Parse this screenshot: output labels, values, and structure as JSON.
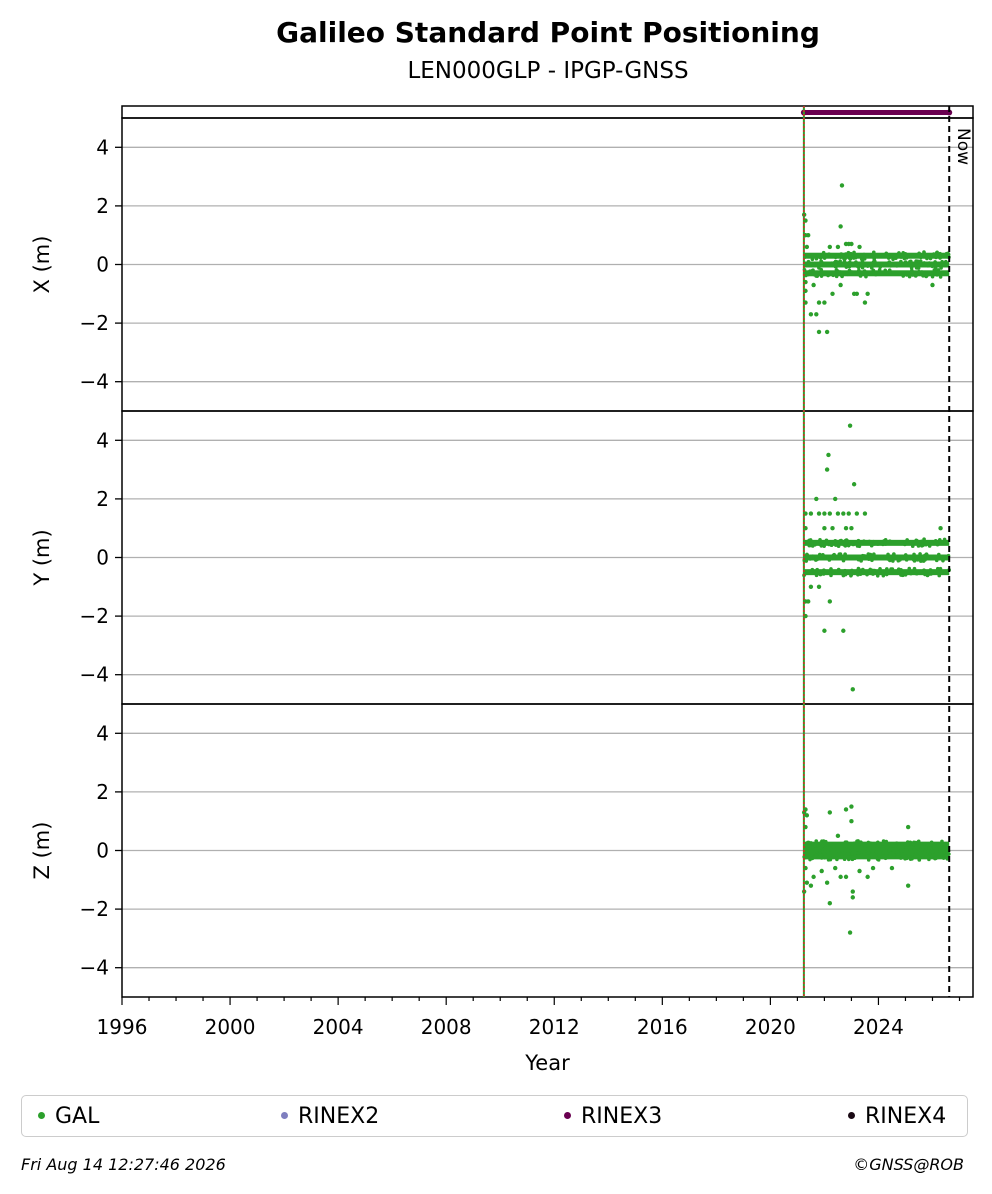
{
  "chart_data": {
    "type": "scatter",
    "title": "Galileo Standard Point Positioning",
    "subtitle": "LEN000GLP - IPGP-GNSS",
    "xlabel": "Year",
    "xlim": [
      1996,
      2027.5
    ],
    "x_ticks": [
      "1996",
      "2000",
      "2004",
      "2008",
      "2012",
      "2016",
      "2020",
      "2024"
    ],
    "now_label": "Now",
    "now_year": 2026.62,
    "start_year": 2021.24,
    "panels": [
      {
        "ylabel": "X (m)",
        "ylim": [
          -5,
          5
        ],
        "y_ticks": [
          "4",
          "2",
          "0",
          "−2",
          "−4"
        ],
        "series": [
          {
            "name": "GAL",
            "bands": [
              -0.3,
              0.0,
              0.3
            ],
            "outliers": [
              [
                2021.25,
                1.7
              ],
              [
                2021.3,
                1.5
              ],
              [
                2021.3,
                1.0
              ],
              [
                2021.4,
                1.0
              ],
              [
                2021.35,
                0.6
              ],
              [
                2021.3,
                -0.6
              ],
              [
                2021.3,
                -0.9
              ],
              [
                2021.3,
                -1.3
              ],
              [
                2021.5,
                -1.7
              ],
              [
                2021.7,
                -1.7
              ],
              [
                2021.8,
                -1.3
              ],
              [
                2021.8,
                -2.3
              ],
              [
                2022.0,
                -1.3
              ],
              [
                2022.1,
                -2.3
              ],
              [
                2022.3,
                -1.0
              ],
              [
                2022.2,
                0.6
              ],
              [
                2022.5,
                0.6
              ],
              [
                2022.6,
                1.3
              ],
              [
                2022.65,
                2.7
              ],
              [
                2022.8,
                0.7
              ],
              [
                2022.9,
                0.7
              ],
              [
                2023.0,
                0.7
              ],
              [
                2023.2,
                -1.0
              ],
              [
                2023.5,
                -1.3
              ],
              [
                2023.3,
                0.6
              ],
              [
                2022.6,
                -0.7
              ],
              [
                2023.1,
                -1.0
              ],
              [
                2023.6,
                -1.0
              ],
              [
                2021.6,
                -0.7
              ],
              [
                2026.0,
                -0.7
              ]
            ]
          }
        ]
      },
      {
        "ylabel": "Y (m)",
        "ylim": [
          -5,
          5
        ],
        "y_ticks": [
          "4",
          "2",
          "0",
          "−2",
          "−4"
        ],
        "series": [
          {
            "name": "GAL",
            "bands": [
              -0.5,
              0.0,
              0.5
            ],
            "outliers": [
              [
                2021.3,
                1.5
              ],
              [
                2021.5,
                1.5
              ],
              [
                2021.8,
                1.5
              ],
              [
                2022.0,
                1.5
              ],
              [
                2022.2,
                1.5
              ],
              [
                2022.5,
                1.5
              ],
              [
                2022.7,
                1.5
              ],
              [
                2022.9,
                1.5
              ],
              [
                2023.2,
                1.5
              ],
              [
                2023.5,
                1.5
              ],
              [
                2021.3,
                1.0
              ],
              [
                2022.0,
                1.0
              ],
              [
                2022.3,
                1.0
              ],
              [
                2022.8,
                1.0
              ],
              [
                2023.0,
                1.0
              ],
              [
                2026.3,
                1.0
              ],
              [
                2021.7,
                2.0
              ],
              [
                2022.1,
                3.0
              ],
              [
                2022.15,
                3.5
              ],
              [
                2022.4,
                2.0
              ],
              [
                2022.95,
                4.5
              ],
              [
                2023.1,
                2.5
              ],
              [
                2021.3,
                -1.5
              ],
              [
                2021.4,
                -1.5
              ],
              [
                2021.3,
                -2.0
              ],
              [
                2022.2,
                -1.5
              ],
              [
                2022.0,
                -2.5
              ],
              [
                2022.7,
                -2.5
              ],
              [
                2023.05,
                -4.5
              ],
              [
                2021.5,
                -1.0
              ],
              [
                2021.8,
                -1.0
              ]
            ]
          }
        ]
      },
      {
        "ylabel": "Z (m)",
        "ylim": [
          -5,
          5
        ],
        "y_ticks": [
          "4",
          "2",
          "0",
          "−2",
          "−4"
        ],
        "series": [
          {
            "name": "GAL",
            "bands": [
              -0.2,
              0.0,
              0.2
            ],
            "outliers": [
              [
                2021.25,
                1.3
              ],
              [
                2021.3,
                1.4
              ],
              [
                2021.35,
                1.2
              ],
              [
                2021.3,
                0.8
              ],
              [
                2021.3,
                -0.6
              ],
              [
                2021.35,
                -1.1
              ],
              [
                2021.25,
                -1.4
              ],
              [
                2021.5,
                -1.2
              ],
              [
                2021.6,
                -0.9
              ],
              [
                2021.9,
                -0.7
              ],
              [
                2022.1,
                -1.1
              ],
              [
                2022.2,
                -1.8
              ],
              [
                2022.2,
                1.3
              ],
              [
                2022.4,
                -0.6
              ],
              [
                2022.6,
                -0.9
              ],
              [
                2022.8,
                1.4
              ],
              [
                2023.0,
                1.5
              ],
              [
                2023.0,
                1.0
              ],
              [
                2022.95,
                -2.8
              ],
              [
                2023.05,
                -1.4
              ],
              [
                2023.05,
                -1.6
              ],
              [
                2022.8,
                -0.9
              ],
              [
                2023.3,
                -0.7
              ],
              [
                2023.6,
                -0.9
              ],
              [
                2025.1,
                0.8
              ],
              [
                2025.1,
                -1.2
              ],
              [
                2022.5,
                0.5
              ],
              [
                2023.8,
                -0.6
              ],
              [
                2024.5,
                -0.6
              ]
            ]
          }
        ]
      }
    ],
    "legend": [
      {
        "name": "GAL",
        "color": "#2ca02c"
      },
      {
        "name": "RINEX2",
        "color": "#7f7fbf"
      },
      {
        "name": "RINEX3",
        "color": "#6a0050"
      },
      {
        "name": "RINEX4",
        "color": "#1a0a14"
      }
    ],
    "colors": {
      "gal": "#2ca02c",
      "rinex3_bar": "#6a0050",
      "start_line": "#d62728",
      "grid": "#b0b0b0"
    }
  },
  "footer": {
    "timestamp": "Fri Aug 14 12:27:46 2026",
    "credit": "©GNSS@ROB"
  }
}
